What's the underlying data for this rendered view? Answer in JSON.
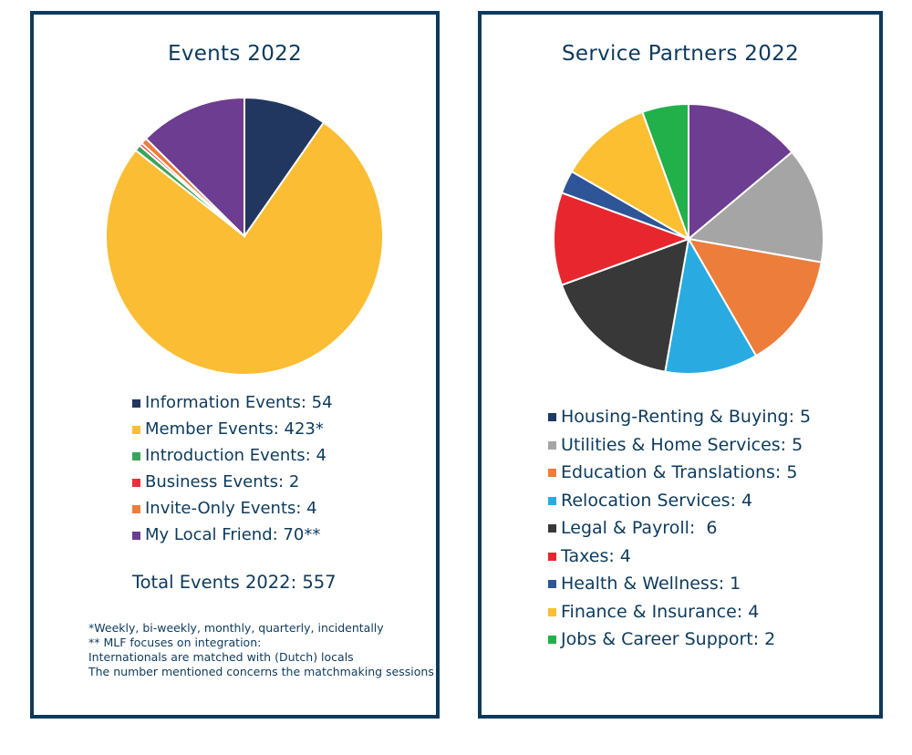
{
  "chart_data": [
    {
      "type": "pie",
      "title": "Events 2022",
      "series": [
        {
          "name": "Information Events",
          "value": 54,
          "label": "Information Events: 54",
          "color": "#22375f"
        },
        {
          "name": "Member Events",
          "value": 423,
          "label": "Member Events: 423*",
          "color": "#fbbd33"
        },
        {
          "name": "Introduction Events",
          "value": 4,
          "label": "Introduction Events: 4",
          "color": "#3aa45a"
        },
        {
          "name": "Business Events",
          "value": 2,
          "label": "Business Events: 2",
          "color": "#e8313a"
        },
        {
          "name": "Invite-Only Events",
          "value": 4,
          "label": "Invite-Only Events: 4",
          "color": "#ef7d3a"
        },
        {
          "name": "My Local Friend",
          "value": 70,
          "label": "My Local Friend: 70**",
          "color": "#6c3d91"
        }
      ],
      "total_label": "Total Events 2022: 557",
      "notes": [
        "*Weekly, bi-weekly, monthly, quarterly, incidentally",
        "** MLF focuses on integration:",
        "Internationals are matched with (Dutch) locals",
        "The number mentioned concerns the matchmaking sessions"
      ],
      "legend": "bottom"
    },
    {
      "type": "pie",
      "title": "Service Partners 2022",
      "series": [
        {
          "name": "Housing-Renting & Buying",
          "value": 5,
          "label": "Housing-Renting & Buying: 5",
          "color": "#1f3864",
          "slice_color": "#6c3d91"
        },
        {
          "name": "Utilities & Home Services",
          "value": 5,
          "label": "Utilities & Home Services: 5",
          "color": "#a5a5a5"
        },
        {
          "name": "Education & Translations",
          "value": 5,
          "label": "Education & Translations: 5",
          "color": "#ed7d3a"
        },
        {
          "name": "Relocation Services",
          "value": 4,
          "label": "Relocation Services: 4",
          "color": "#29abe2"
        },
        {
          "name": "Legal & Payroll",
          "value": 6,
          "label": "Legal & Payroll:  6",
          "color": "#383838"
        },
        {
          "name": "Taxes",
          "value": 4,
          "label": "Taxes: 4",
          "color": "#e8262e"
        },
        {
          "name": "Health & Wellness",
          "value": 1,
          "label": "Health & Wellness: 1",
          "color": "#2d5597"
        },
        {
          "name": "Finance & Insurance",
          "value": 4,
          "label": "Finance & Insurance: 4",
          "color": "#fbbf31"
        },
        {
          "name": "Jobs & Career Support",
          "value": 2,
          "label": "Jobs & Career Support: 2",
          "color": "#22b04b"
        }
      ],
      "legend": "bottom"
    }
  ]
}
